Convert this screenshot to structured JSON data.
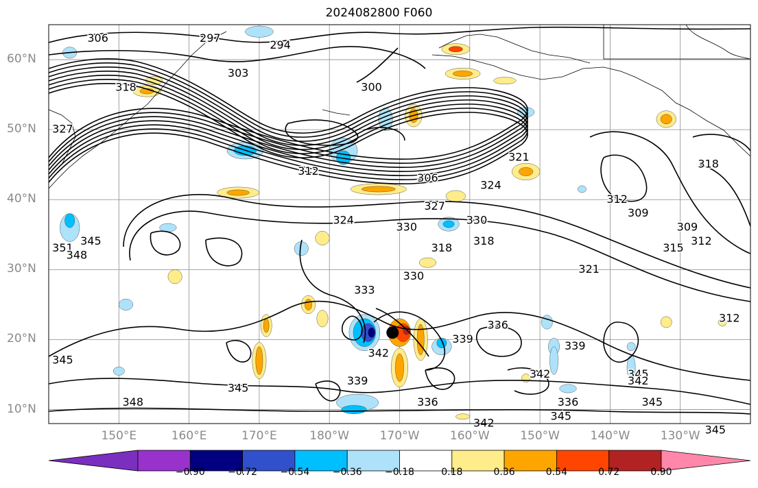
{
  "title": "2024082800 F060",
  "lat_labels": [
    {
      "text": "60°N",
      "lat": 60
    },
    {
      "text": "50°N",
      "lat": 50
    },
    {
      "text": "40°N",
      "lat": 40
    },
    {
      "text": "30°N",
      "lat": 30
    },
    {
      "text": "20°N",
      "lat": 20
    },
    {
      "text": "10°N",
      "lat": 10
    }
  ],
  "lon_labels": [
    {
      "text": "150°E",
      "lon": 150
    },
    {
      "text": "160°E",
      "lon": 160
    },
    {
      "text": "170°E",
      "lon": 170
    },
    {
      "text": "180°W",
      "lon": 180
    },
    {
      "text": "170°W",
      "lon": 190
    },
    {
      "text": "160°W",
      "lon": 200
    },
    {
      "text": "150°W",
      "lon": 210
    },
    {
      "text": "140°W",
      "lon": 220
    },
    {
      "text": "130°W",
      "lon": 230
    }
  ],
  "colorbar": {
    "colors": [
      "#7b2fbf",
      "#9932cc",
      "#000080",
      "#3050cc",
      "#00bfff",
      "#aee2fa",
      "#ffffff",
      "#ffec8b",
      "#ffa500",
      "#ff4500",
      "#b22222",
      "#ff88aa"
    ],
    "ticks": [
      "−0.90",
      "−0.72",
      "−0.54",
      "−0.36",
      "−0.18",
      "0.18",
      "0.36",
      "0.54",
      "0.72",
      "0.90"
    ]
  },
  "contour_labels": [
    {
      "text": "306",
      "lon": 147,
      "lat": 63
    },
    {
      "text": "297",
      "lon": 163,
      "lat": 63
    },
    {
      "text": "294",
      "lon": 173,
      "lat": 62
    },
    {
      "text": "303",
      "lon": 167,
      "lat": 58
    },
    {
      "text": "318",
      "lon": 151,
      "lat": 56
    },
    {
      "text": "300",
      "lon": 186,
      "lat": 56
    },
    {
      "text": "327",
      "lon": 142,
      "lat": 50
    },
    {
      "text": "312",
      "lon": 177,
      "lat": 44
    },
    {
      "text": "306",
      "lon": 194,
      "lat": 43
    },
    {
      "text": "324",
      "lon": 203,
      "lat": 42
    },
    {
      "text": "321",
      "lon": 207,
      "lat": 46
    },
    {
      "text": "327",
      "lon": 195,
      "lat": 39
    },
    {
      "text": "330",
      "lon": 201,
      "lat": 37
    },
    {
      "text": "330",
      "lon": 191,
      "lat": 36
    },
    {
      "text": "324",
      "lon": 182,
      "lat": 37
    },
    {
      "text": "318",
      "lon": 196,
      "lat": 33
    },
    {
      "text": "318",
      "lon": 202,
      "lat": 34
    },
    {
      "text": "309",
      "lon": 224,
      "lat": 38
    },
    {
      "text": "312",
      "lon": 221,
      "lat": 40
    },
    {
      "text": "318",
      "lon": 234,
      "lat": 45
    },
    {
      "text": "315",
      "lon": 229,
      "lat": 33
    },
    {
      "text": "309",
      "lon": 231,
      "lat": 36
    },
    {
      "text": "312",
      "lon": 233,
      "lat": 34
    },
    {
      "text": "321",
      "lon": 217,
      "lat": 30
    },
    {
      "text": "312",
      "lon": 237,
      "lat": 23
    },
    {
      "text": "351",
      "lon": 142,
      "lat": 33
    },
    {
      "text": "348",
      "lon": 144,
      "lat": 32
    },
    {
      "text": "345",
      "lon": 146,
      "lat": 34
    },
    {
      "text": "330",
      "lon": 192,
      "lat": 29
    },
    {
      "text": "333",
      "lon": 185,
      "lat": 27
    },
    {
      "text": "339",
      "lon": 199,
      "lat": 20
    },
    {
      "text": "336",
      "lon": 204,
      "lat": 22
    },
    {
      "text": "342",
      "lon": 187,
      "lat": 18
    },
    {
      "text": "339",
      "lon": 184,
      "lat": 14
    },
    {
      "text": "339",
      "lon": 215,
      "lat": 19
    },
    {
      "text": "342",
      "lon": 210,
      "lat": 15
    },
    {
      "text": "345",
      "lon": 142,
      "lat": 17
    },
    {
      "text": "345",
      "lon": 167,
      "lat": 13
    },
    {
      "text": "348",
      "lon": 152,
      "lat": 11
    },
    {
      "text": "336",
      "lon": 194,
      "lat": 11
    },
    {
      "text": "342",
      "lon": 202,
      "lat": 8
    },
    {
      "text": "336",
      "lon": 214,
      "lat": 11
    },
    {
      "text": "345",
      "lon": 213,
      "lat": 9
    },
    {
      "text": "345",
      "lon": 224,
      "lat": 15
    },
    {
      "text": "342",
      "lon": 224,
      "lat": 14
    },
    {
      "text": "345",
      "lon": 226,
      "lat": 11
    },
    {
      "text": "345",
      "lon": 235,
      "lat": 7
    }
  ],
  "storm_center": {
    "lon": 189,
    "lat": 21
  },
  "map_extent": {
    "lon_min": 140,
    "lon_max": 240,
    "lat_min": 8,
    "lat_max": 65
  }
}
